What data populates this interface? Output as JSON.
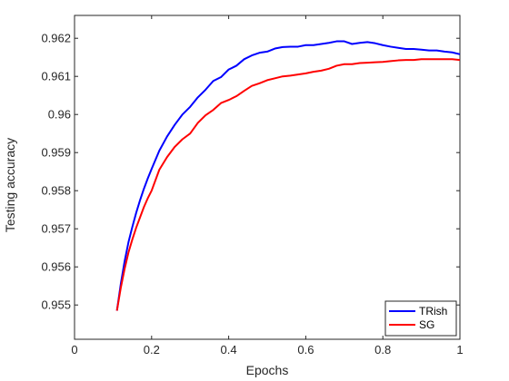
{
  "chart_data": {
    "type": "line",
    "title": "",
    "xlabel": "Epochs",
    "ylabel": "Testing accuracy",
    "xlim": [
      0,
      1
    ],
    "ylim": [
      0.9541,
      0.9626
    ],
    "xticks": [
      0,
      0.2,
      0.4,
      0.6,
      0.8,
      1
    ],
    "xtick_labels": [
      "0",
      "0.2",
      "0.4",
      "0.6",
      "0.8",
      "1"
    ],
    "yticks": [
      0.955,
      0.956,
      0.957,
      0.958,
      0.959,
      0.96,
      0.961,
      0.962
    ],
    "ytick_labels": [
      "0.955",
      "0.956",
      "0.957",
      "0.958",
      "0.959",
      "0.96",
      "0.961",
      "0.962"
    ],
    "grid": false,
    "legend_position": "bottom-right",
    "series": [
      {
        "name": "TRish",
        "color": "#0000ff",
        "x": [
          0.11,
          0.12,
          0.13,
          0.14,
          0.15,
          0.16,
          0.17,
          0.18,
          0.19,
          0.2,
          0.22,
          0.24,
          0.26,
          0.28,
          0.3,
          0.32,
          0.34,
          0.36,
          0.38,
          0.4,
          0.42,
          0.44,
          0.46,
          0.48,
          0.5,
          0.52,
          0.54,
          0.56,
          0.58,
          0.6,
          0.62,
          0.64,
          0.66,
          0.68,
          0.7,
          0.72,
          0.74,
          0.76,
          0.78,
          0.8,
          0.82,
          0.84,
          0.86,
          0.88,
          0.9,
          0.92,
          0.94,
          0.96,
          0.98,
          1.0
        ],
        "y": [
          0.95485,
          0.95555,
          0.95615,
          0.95665,
          0.95705,
          0.95742,
          0.95775,
          0.95805,
          0.95832,
          0.95857,
          0.95905,
          0.95942,
          0.95973,
          0.96,
          0.9602,
          0.96045,
          0.96065,
          0.96088,
          0.96098,
          0.96118,
          0.96128,
          0.96145,
          0.96155,
          0.96162,
          0.96165,
          0.96173,
          0.96177,
          0.96178,
          0.96178,
          0.96182,
          0.96182,
          0.96185,
          0.96188,
          0.96192,
          0.96192,
          0.96185,
          0.96188,
          0.9619,
          0.96187,
          0.96182,
          0.96178,
          0.96175,
          0.96172,
          0.96172,
          0.9617,
          0.96168,
          0.96168,
          0.96165,
          0.96163,
          0.96158
        ]
      },
      {
        "name": "SG",
        "color": "#ff0000",
        "x": [
          0.11,
          0.12,
          0.13,
          0.14,
          0.15,
          0.16,
          0.17,
          0.18,
          0.19,
          0.2,
          0.22,
          0.24,
          0.26,
          0.28,
          0.3,
          0.32,
          0.34,
          0.36,
          0.38,
          0.4,
          0.42,
          0.44,
          0.46,
          0.48,
          0.5,
          0.52,
          0.54,
          0.56,
          0.58,
          0.6,
          0.62,
          0.64,
          0.66,
          0.68,
          0.7,
          0.72,
          0.74,
          0.76,
          0.78,
          0.8,
          0.82,
          0.84,
          0.86,
          0.88,
          0.9,
          0.92,
          0.94,
          0.96,
          0.98,
          1.0
        ],
        "y": [
          0.95485,
          0.95545,
          0.95595,
          0.95638,
          0.95672,
          0.95703,
          0.9573,
          0.95757,
          0.9578,
          0.958,
          0.95855,
          0.95888,
          0.95915,
          0.95935,
          0.9595,
          0.95978,
          0.95998,
          0.96012,
          0.9603,
          0.96038,
          0.96048,
          0.96062,
          0.96075,
          0.96082,
          0.9609,
          0.96095,
          0.961,
          0.96102,
          0.96105,
          0.96108,
          0.96112,
          0.96115,
          0.9612,
          0.96128,
          0.96132,
          0.96132,
          0.96135,
          0.96136,
          0.96137,
          0.96138,
          0.9614,
          0.96142,
          0.96143,
          0.96143,
          0.96145,
          0.96145,
          0.96145,
          0.96145,
          0.96145,
          0.96143
        ]
      }
    ]
  }
}
